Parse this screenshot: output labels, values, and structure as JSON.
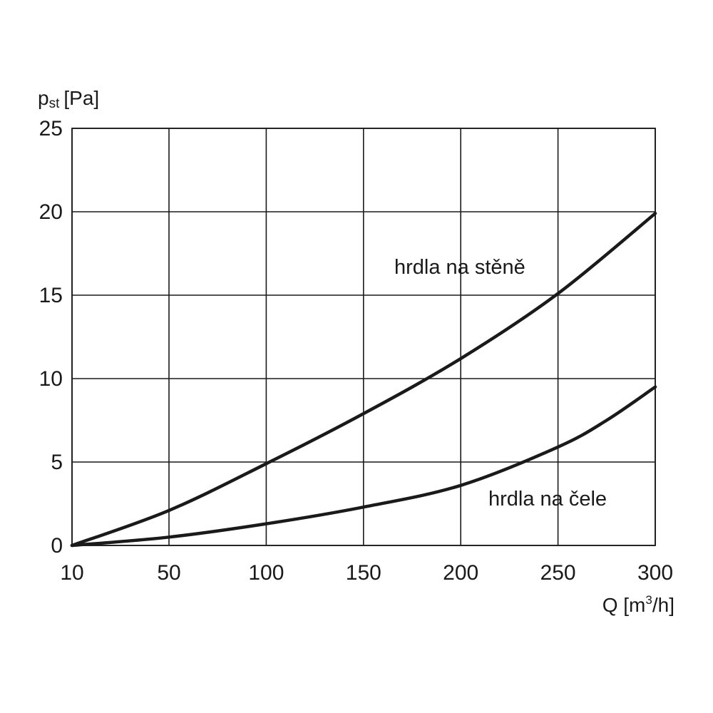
{
  "chart_data": {
    "type": "line",
    "ylabel": {
      "main": "p",
      "sub": "st",
      "unit": "[Pa]"
    },
    "xlabel": {
      "prefix": "Q [m",
      "sup": "3",
      "suffix": "/h]"
    },
    "x_ticks": [
      10,
      50,
      100,
      150,
      200,
      250,
      300
    ],
    "y_ticks": [
      0,
      5,
      10,
      15,
      20,
      25
    ],
    "xlim": [
      10,
      300
    ],
    "ylim": [
      0,
      25
    ],
    "grid": true,
    "series": [
      {
        "name": "hrdla na stěně",
        "x": [
          10,
          50,
          100,
          150,
          200,
          250,
          300
        ],
        "y": [
          0,
          2.1,
          4.9,
          7.9,
          11.2,
          15.1,
          19.9
        ]
      },
      {
        "name": "hrdla na čele",
        "x": [
          10,
          50,
          100,
          150,
          200,
          250,
          275,
          300
        ],
        "y": [
          0,
          0.5,
          1.3,
          2.3,
          3.6,
          5.9,
          7.5,
          9.5
        ]
      }
    ],
    "colors": {
      "line": "#1a1a1a",
      "grid": "#1a1a1a"
    }
  }
}
